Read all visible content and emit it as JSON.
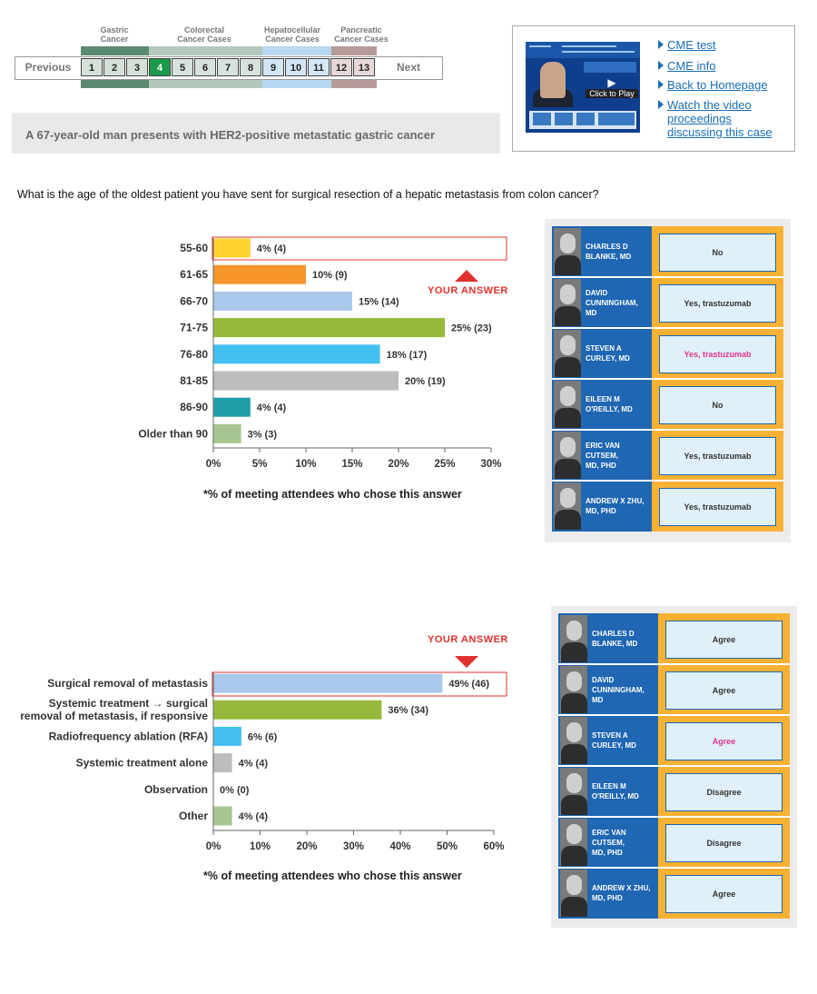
{
  "nav": {
    "categories": [
      {
        "name": "Gastric\nCancer",
        "line1": "Gastric",
        "line2": "Cancer",
        "color": "#5a8a70"
      },
      {
        "name": "Colorectal\nCancer Cases",
        "line1": "Colorectal",
        "line2": "Cancer Cases",
        "color": "#b2c8bb"
      },
      {
        "name": "Hepatocellular\nCancer Cases",
        "line1": "Hepatocellular",
        "line2": "Cancer Cases",
        "color": "#b7d7f2"
      },
      {
        "name": "Pancreatic\nCancer Cases",
        "line1": "Pancreatic",
        "line2": "Cancer Cases",
        "color": "#b79a9a"
      }
    ],
    "previous": "Previous",
    "next": "Next",
    "numbers": [
      "1",
      "2",
      "3",
      "4",
      "5",
      "6",
      "7",
      "8",
      "9",
      "10",
      "11",
      "12",
      "13"
    ],
    "active": "4"
  },
  "case_title": "A 67-year-old man presents with HER2-positive metastatic gastric cancer",
  "links": {
    "thumbnail_play": "Click to Play",
    "items": [
      "CME test",
      "CME info",
      "Back to Homepage",
      "Watch the video proceedings discussing this case"
    ],
    "video_lines": [
      "Watch the video",
      "proceedings",
      "discussing this case"
    ]
  },
  "question": "What is the age of the oldest patient you have sent for surgical resection of a hepatic metastasis from colon cancer?",
  "your_answer_label": "YOUR ANSWER",
  "footnote": "*% of meeting attendees who chose this answer",
  "chart_data": [
    {
      "type": "bar",
      "orientation": "horizontal",
      "categories": [
        "55-60",
        "61-65",
        "66-70",
        "71-75",
        "76-80",
        "81-85",
        "86-90",
        "Older than 90"
      ],
      "values": [
        4,
        10,
        15,
        25,
        18,
        20,
        4,
        3
      ],
      "counts": [
        4,
        9,
        14,
        23,
        17,
        19,
        4,
        3
      ],
      "data_labels": [
        "4% (4)",
        "10% (9)",
        "15% (14)",
        "25% (23)",
        "18% (17)",
        "20% (19)",
        "4% (4)",
        "3% (3)"
      ],
      "colors": [
        "#ffd230",
        "#f7962a",
        "#a9c8ec",
        "#95b93a",
        "#42c1f1",
        "#bdbdbd",
        "#1e9ea6",
        "#a8c691"
      ],
      "xlim": [
        0,
        30
      ],
      "xticks": [
        "0%",
        "5%",
        "10%",
        "15%",
        "20%",
        "25%",
        "30%"
      ],
      "highlighted": "55-60",
      "footnote": "*% of meeting attendees who chose this answer"
    },
    {
      "type": "bar",
      "orientation": "horizontal",
      "categories": [
        "Surgical removal of metastasis",
        "Systemic treatment → surgical removal of metastasis, if responsive",
        "Radiofrequency ablation (RFA)",
        "Systemic treatment alone",
        "Observation",
        "Other"
      ],
      "category_lines": [
        [
          "Surgical removal of metastasis"
        ],
        [
          "Systemic treatment → surgical",
          "removal of metastasis, if responsive"
        ],
        [
          "Radiofrequency ablation (RFA)"
        ],
        [
          "Systemic treatment alone"
        ],
        [
          "Observation"
        ],
        [
          "Other"
        ]
      ],
      "values": [
        49,
        36,
        6,
        4,
        0,
        4
      ],
      "counts": [
        46,
        34,
        6,
        4,
        0,
        4
      ],
      "data_labels": [
        "49% (46)",
        "36% (34)",
        "6% (6)",
        "4% (4)",
        "0% (0)",
        "4% (4)"
      ],
      "colors": [
        "#a9c8ec",
        "#95b93a",
        "#42c1f1",
        "#bdbdbd",
        "#bdbdbd",
        "#a8c691"
      ],
      "xlim": [
        0,
        60
      ],
      "xticks": [
        "0%",
        "10%",
        "20%",
        "30%",
        "40%",
        "50%",
        "60%"
      ],
      "highlighted": "Surgical removal of metastasis",
      "footnote": "*% of meeting attendees who chose this answer"
    }
  ],
  "panels": [
    {
      "rows": [
        {
          "name": "CHARLES D BLANKE, MD",
          "lines": [
            "CHARLES D",
            "BLANKE, MD"
          ],
          "answer": "No",
          "highlight": false
        },
        {
          "name": "DAVID CUNNINGHAM, MD",
          "lines": [
            "DAVID",
            "CUNNINGHAM,",
            "MD"
          ],
          "answer": "Yes, trastuzumab",
          "highlight": false
        },
        {
          "name": "STEVEN A CURLEY, MD",
          "lines": [
            "STEVEN A",
            "CURLEY, MD"
          ],
          "answer": "Yes, trastuzumab",
          "highlight": true
        },
        {
          "name": "EILEEN M O'REILLY, MD",
          "lines": [
            "EILEEN M",
            "O'REILLY, MD"
          ],
          "answer": "No",
          "highlight": false
        },
        {
          "name": "ERIC VAN CUTSEM, MD, PHD",
          "lines": [
            "ERIC VAN",
            "CUTSEM,",
            "MD, PHD"
          ],
          "answer": "Yes, trastuzumab",
          "highlight": false
        },
        {
          "name": "ANDREW X ZHU, MD, PHD",
          "lines": [
            "ANDREW X ZHU,",
            "MD, PHD"
          ],
          "answer": "Yes, trastuzumab",
          "highlight": false
        }
      ]
    },
    {
      "rows": [
        {
          "name": "CHARLES D BLANKE, MD",
          "lines": [
            "CHARLES D",
            "BLANKE, MD"
          ],
          "answer": "Agree",
          "highlight": false
        },
        {
          "name": "DAVID CUNNINGHAM, MD",
          "lines": [
            "DAVID",
            "CUNNINGHAM,",
            "MD"
          ],
          "answer": "Agree",
          "highlight": false
        },
        {
          "name": "STEVEN A CURLEY, MD",
          "lines": [
            "STEVEN A",
            "CURLEY, MD"
          ],
          "answer": "Agree",
          "highlight": true
        },
        {
          "name": "EILEEN M O'REILLY, MD",
          "lines": [
            "EILEEN M",
            "O'REILLY, MD"
          ],
          "answer": "Disagree",
          "highlight": false
        },
        {
          "name": "ERIC VAN CUTSEM, MD, PHD",
          "lines": [
            "ERIC VAN",
            "CUTSEM,",
            "MD, PHD"
          ],
          "answer": "Disagree",
          "highlight": false
        },
        {
          "name": "ANDREW X ZHU, MD, PHD",
          "lines": [
            "ANDREW X ZHU,",
            "MD, PHD"
          ],
          "answer": "Agree",
          "highlight": false
        }
      ]
    }
  ]
}
